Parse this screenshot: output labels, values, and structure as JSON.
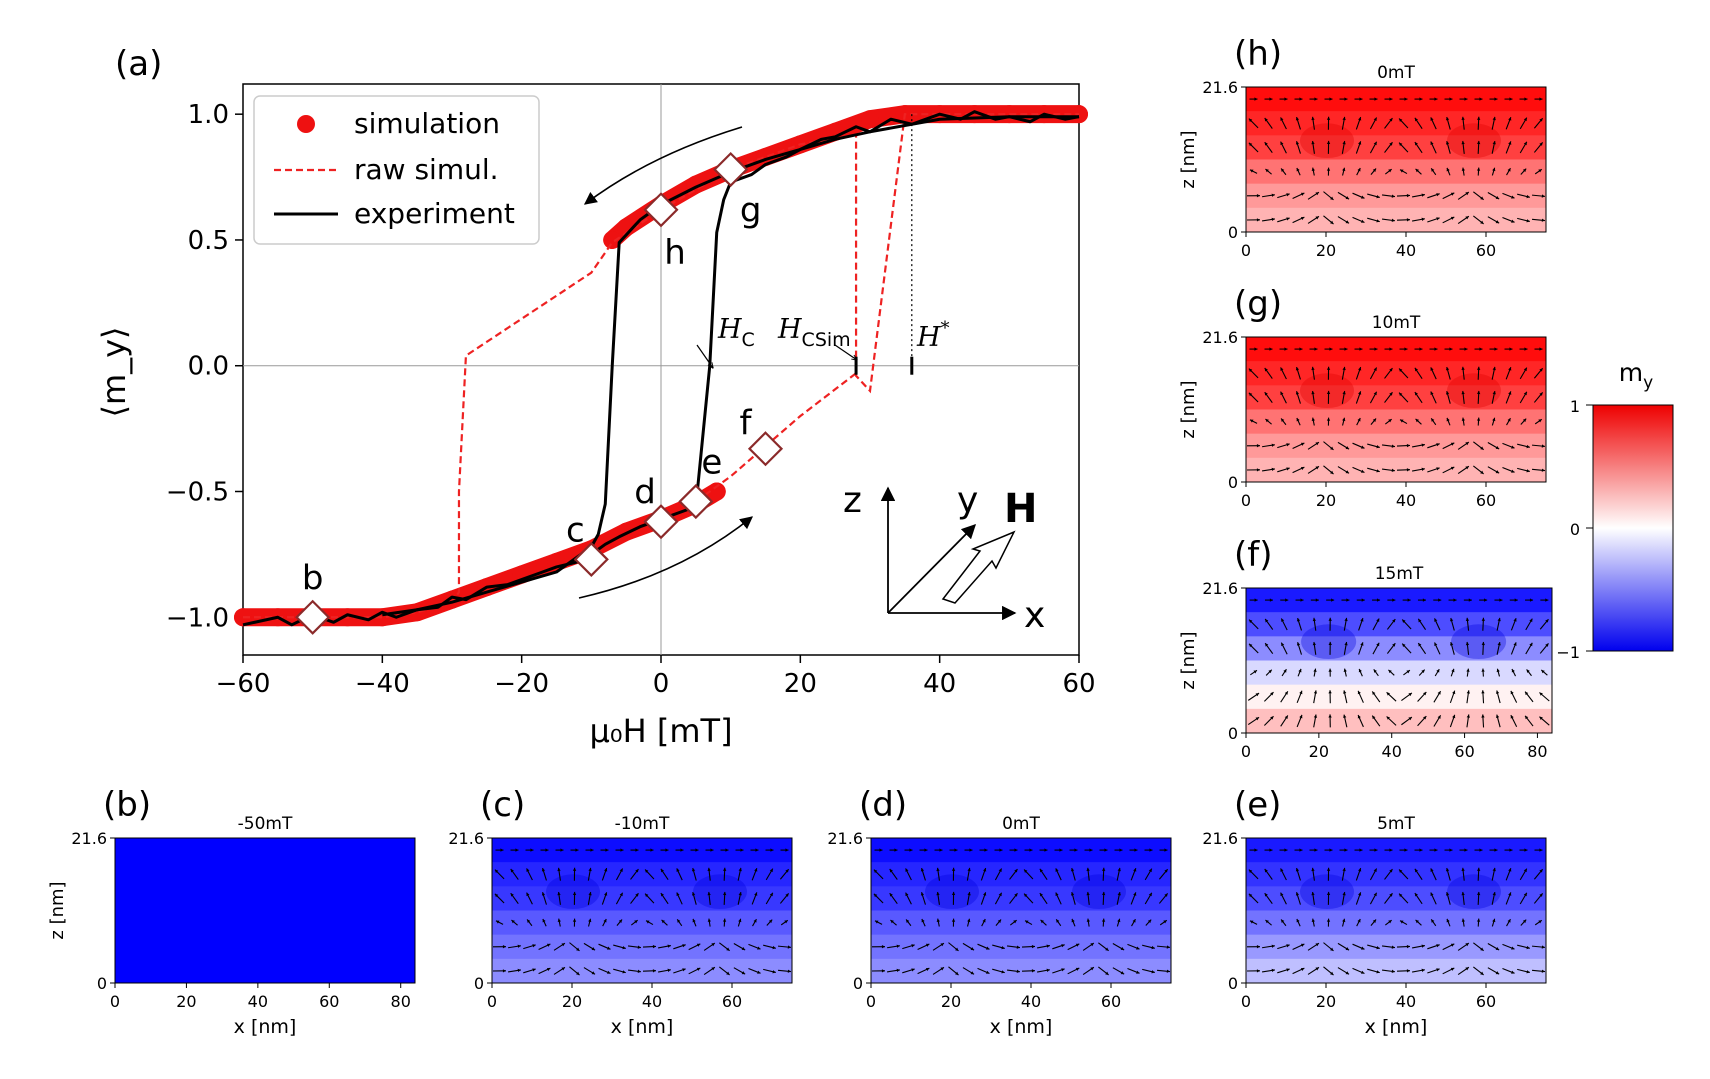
{
  "chart_data": {
    "type": "line",
    "panel": "(a)",
    "xlabel": "μ₀H [mT]",
    "ylabel": "⟨m_y⟩",
    "xlim": [
      -60,
      60
    ],
    "ylim": [
      -1.15,
      1.12
    ],
    "xticks": [
      -60,
      -40,
      -20,
      0,
      20,
      40,
      60
    ],
    "xtick_labels": [
      "−60",
      "−40",
      "−20",
      "0",
      "20",
      "40",
      "60"
    ],
    "yticks": [
      -1.0,
      -0.5,
      0.0,
      0.5,
      1.0
    ],
    "ytick_labels": [
      "−1.0",
      "−0.5",
      "0.0",
      "0.5",
      "1.0"
    ],
    "legend": {
      "position": "top-left",
      "entries": [
        {
          "label": "simulation",
          "style": "marker",
          "color": "#ee1111"
        },
        {
          "label": "raw simul.",
          "style": "dashed",
          "color": "#ee2222"
        },
        {
          "label": "experiment",
          "style": "solid",
          "color": "#000000"
        }
      ]
    },
    "series": [
      {
        "name": "simulation",
        "color": "#ee1111",
        "kind": "markers",
        "branches": [
          {
            "x": [
              -60,
              -55,
              -50,
              -45,
              -40,
              -35,
              -30,
              -25,
              -20,
              -15,
              -10,
              -5,
              0,
              5,
              8
            ],
            "y": [
              -1.0,
              -1.0,
              -1.0,
              -1.0,
              -1.0,
              -0.98,
              -0.93,
              -0.88,
              -0.83,
              -0.78,
              -0.73,
              -0.66,
              -0.61,
              -0.55,
              -0.5
            ]
          },
          {
            "x": [
              60,
              55,
              50,
              45,
              40,
              35,
              30,
              25,
              20,
              15,
              10,
              5,
              0,
              -5,
              -7
            ],
            "y": [
              1.0,
              1.0,
              1.0,
              1.0,
              1.0,
              1.0,
              0.98,
              0.93,
              0.88,
              0.83,
              0.78,
              0.72,
              0.64,
              0.55,
              0.5
            ]
          }
        ]
      },
      {
        "name": "raw simul.",
        "color": "#ee2222",
        "kind": "dashed",
        "x": [
          -60,
          -40,
          -35,
          -30,
          -29,
          -29,
          -28,
          -10,
          -7,
          0,
          10,
          20,
          28,
          28,
          30,
          35,
          60
        ],
        "y": [
          -1.0,
          -1.0,
          -0.98,
          -0.94,
          -0.9,
          -0.5,
          0.04,
          0.37,
          0.49,
          0.62,
          0.78,
          0.88,
          0.92,
          -0.04,
          -0.1,
          1.0,
          1.0
        ]
      },
      {
        "name": "raw simul. (increasing)",
        "color": "#ee2222",
        "kind": "dashed",
        "x": [
          5,
          10,
          15,
          20,
          28
        ],
        "y": [
          -0.54,
          -0.44,
          -0.32,
          -0.2,
          -0.03
        ]
      },
      {
        "name": "experiment",
        "color": "#000000",
        "kind": "solid",
        "branches": [
          {
            "x": [
              -60,
              -55,
              -53,
              -50,
              -47,
              -45,
              -42,
              -40,
              -38,
              -35,
              -32,
              -30,
              -28,
              -25,
              -22,
              -20,
              -17,
              -15,
              -12,
              -10,
              -8,
              -6,
              -3,
              0,
              3,
              5,
              7,
              8,
              9,
              10,
              13,
              15,
              18,
              20,
              23,
              25,
              28,
              30,
              33,
              36,
              40,
              43,
              45,
              48,
              50,
              53,
              55,
              58,
              60
            ],
            "y": [
              -1.03,
              -1.0,
              -1.03,
              -0.99,
              -1.02,
              -0.99,
              -1.01,
              -0.98,
              -1.0,
              -0.97,
              -0.96,
              -0.92,
              -0.93,
              -0.88,
              -0.87,
              -0.85,
              -0.82,
              -0.8,
              -0.78,
              -0.75,
              -0.71,
              -0.68,
              -0.64,
              -0.61,
              -0.58,
              -0.56,
              0.0,
              0.53,
              0.66,
              0.73,
              0.76,
              0.8,
              0.83,
              0.86,
              0.9,
              0.91,
              0.95,
              0.93,
              0.98,
              0.96,
              1.0,
              0.98,
              1.01,
              0.98,
              0.99,
              0.97,
              1.0,
              0.98,
              0.99
            ]
          },
          {
            "x": [
              60,
              50,
              40,
              36,
              30,
              25,
              20,
              15,
              10,
              5,
              0,
              -3,
              -6,
              -7,
              -8,
              -9,
              -10,
              -13,
              -15,
              -20,
              -25,
              -30,
              -35,
              -40
            ],
            "y": [
              0.99,
              0.99,
              0.98,
              0.96,
              0.93,
              0.9,
              0.86,
              0.82,
              0.77,
              0.71,
              0.64,
              0.58,
              0.49,
              0.0,
              -0.55,
              -0.67,
              -0.72,
              -0.78,
              -0.82,
              -0.86,
              -0.9,
              -0.94,
              -0.97,
              -0.99
            ]
          }
        ]
      }
    ],
    "diamonds": [
      {
        "label": "b",
        "x": -50,
        "y": -1.0
      },
      {
        "label": "c",
        "x": -10,
        "y": -0.77
      },
      {
        "label": "d",
        "x": 0,
        "y": -0.62
      },
      {
        "label": "e",
        "x": 5,
        "y": -0.54
      },
      {
        "label": "f",
        "x": 15,
        "y": -0.33
      },
      {
        "label": "g",
        "x": 10,
        "y": 0.78
      },
      {
        "label": "h",
        "x": 0,
        "y": 0.62
      }
    ],
    "annotations": {
      "hc": "H",
      "hc_sub": "C",
      "hc_x": 7,
      "hcsim": "H",
      "hcsim_sub": "CSim",
      "hcsim_x": 28,
      "hstar": "H",
      "hstar_sup": "*",
      "hstar_x": 36
    }
  },
  "axes_glyph": {
    "z": "z",
    "y": "y",
    "x": "x",
    "h": "H"
  },
  "colorbar": {
    "title": "m",
    "title_sub": "y",
    "max": "1",
    "mid": "0",
    "min": "−1"
  },
  "maps": [
    {
      "id": "h",
      "panel": "(h)",
      "title": "0mT",
      "z_max": "21.6",
      "z_min": "0",
      "z_label": "z [nm]",
      "x_label": "",
      "xticks": [
        "0",
        "20",
        "40",
        "60"
      ],
      "tone": "red"
    },
    {
      "id": "g",
      "panel": "(g)",
      "title": "10mT",
      "z_max": "21.6",
      "z_min": "0",
      "z_label": "z [nm]",
      "x_label": "",
      "xticks": [
        "0",
        "20",
        "40",
        "60"
      ],
      "tone": "red"
    },
    {
      "id": "f",
      "panel": "(f)",
      "title": "15mT",
      "z_max": "21.6",
      "z_min": "0",
      "z_label": "z [nm]",
      "x_label": "",
      "xticks": [
        "0",
        "20",
        "40",
        "60",
        "80"
      ],
      "tone": "mixed"
    },
    {
      "id": "b",
      "panel": "(b)",
      "title": "-50mT",
      "z_max": "21.6",
      "z_min": "0",
      "z_label": "z [nm]",
      "x_label": "x [nm]",
      "xticks": [
        "0",
        "20",
        "40",
        "60",
        "80"
      ],
      "tone": "solid-blue"
    },
    {
      "id": "c",
      "panel": "(c)",
      "title": "-10mT",
      "z_max": "21.6",
      "z_min": "0",
      "z_label": "",
      "x_label": "x [nm]",
      "xticks": [
        "0",
        "20",
        "40",
        "60"
      ],
      "tone": "blue"
    },
    {
      "id": "d",
      "panel": "(d)",
      "title": "0mT",
      "z_max": "21.6",
      "z_min": "0",
      "z_label": "",
      "x_label": "x [nm]",
      "xticks": [
        "0",
        "20",
        "40",
        "60"
      ],
      "tone": "blue"
    },
    {
      "id": "e",
      "panel": "(e)",
      "title": "5mT",
      "z_max": "21.6",
      "z_min": "0",
      "z_label": "",
      "x_label": "x [nm]",
      "xticks": [
        "0",
        "20",
        "40",
        "60"
      ],
      "tone": "blue-light"
    }
  ]
}
